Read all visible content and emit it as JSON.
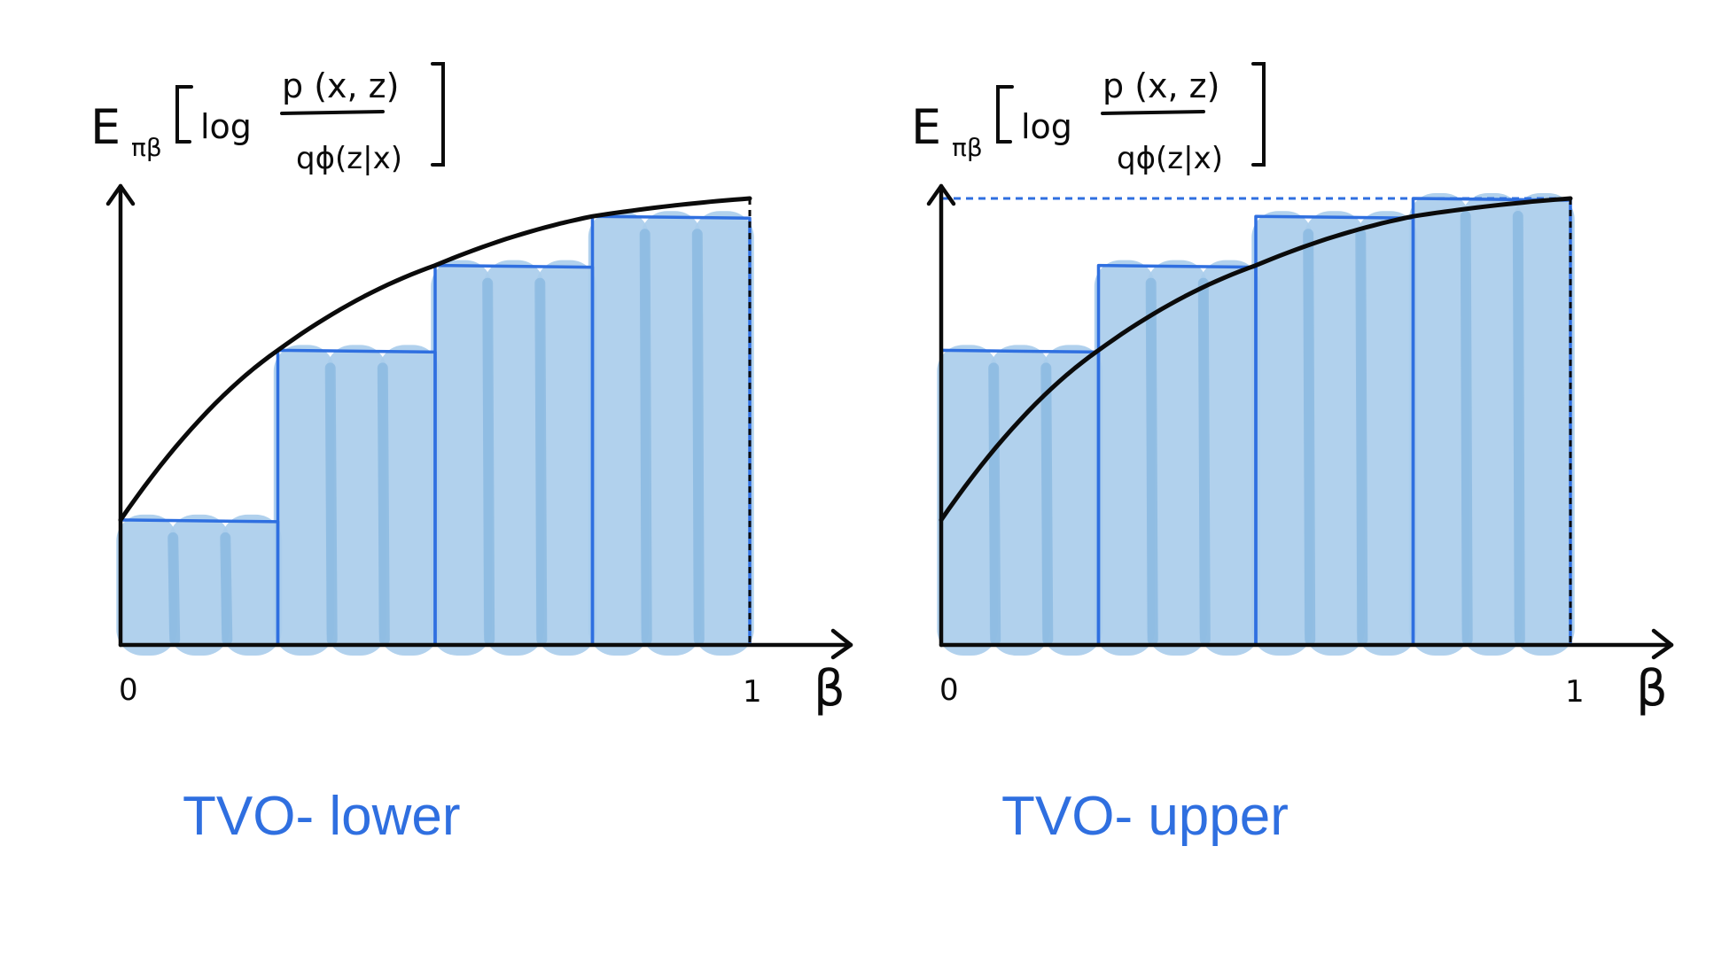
{
  "figure": {
    "colors": {
      "ink": "#0b0b0b",
      "step_line": "#2f6fe0",
      "fill": "#aacdeb",
      "fill_dark": "#86b6e0",
      "caption": "#2f6fe0",
      "background": "#ffffff"
    },
    "panels": [
      {
        "id": "lower",
        "ylabel": {
          "expectation": "E",
          "subscript": "πβ",
          "log": "log",
          "numerator": "p (x, z)",
          "denominator": "qϕ(z|x)"
        },
        "tick_left": "0",
        "tick_right": "1",
        "xlabel": "β",
        "caption": "TVO- lower",
        "partition": [
          0,
          0.25,
          0.5,
          0.75,
          1
        ],
        "curve_at_partition": [
          0.28,
          0.66,
          0.85,
          0.96,
          1.0
        ],
        "step_heights": [
          0.28,
          0.66,
          0.85,
          0.96
        ],
        "bound_line": false
      },
      {
        "id": "upper",
        "ylabel": {
          "expectation": "E",
          "subscript": "πβ",
          "log": "log",
          "numerator": "p (x, z)",
          "denominator": "qϕ(z|x)"
        },
        "tick_left": "0",
        "tick_right": "1",
        "xlabel": "β",
        "caption": "TVO- upper",
        "partition": [
          0,
          0.25,
          0.5,
          0.75,
          1
        ],
        "curve_at_partition": [
          0.28,
          0.66,
          0.85,
          0.96,
          1.0
        ],
        "step_heights": [
          0.66,
          0.85,
          0.96,
          1.0
        ],
        "bound_line": true
      }
    ]
  }
}
